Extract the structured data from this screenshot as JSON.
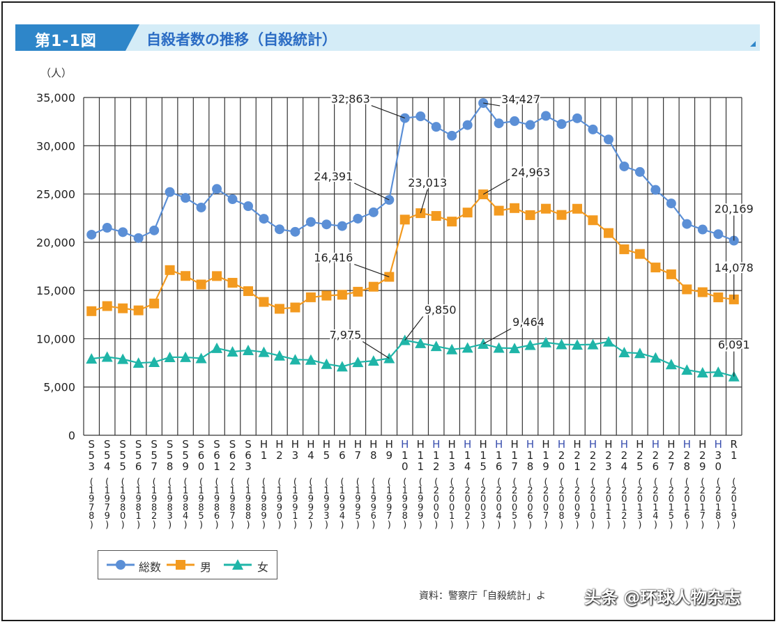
{
  "header": {
    "figure_label": "第1-1図",
    "title": "自殺者数の推移（自殺統計）"
  },
  "colors": {
    "header_dark": "#2e86c9",
    "header_light": "#d4ecf7",
    "total": "#5b8fd6",
    "male": "#f39a1f",
    "female": "#1fb5a8",
    "grid": "#333333"
  },
  "chart_data": {
    "type": "line",
    "ylabel": "（人）",
    "ylim": [
      0,
      35000
    ],
    "yticks": [
      "0",
      "5,000",
      "10,000",
      "15,000",
      "20,000",
      "25,000",
      "30,000",
      "35,000"
    ],
    "grid": true,
    "legend_position": "bottom-left",
    "categories": [
      {
        "era": "S53",
        "year": "1978"
      },
      {
        "era": "S54",
        "year": "1979"
      },
      {
        "era": "S55",
        "year": "1980"
      },
      {
        "era": "S56",
        "year": "1981"
      },
      {
        "era": "S57",
        "year": "1982"
      },
      {
        "era": "S58",
        "year": "1983"
      },
      {
        "era": "S59",
        "year": "1984"
      },
      {
        "era": "S60",
        "year": "1985"
      },
      {
        "era": "S61",
        "year": "1986"
      },
      {
        "era": "S62",
        "year": "1987"
      },
      {
        "era": "S63",
        "year": "1988"
      },
      {
        "era": "H1",
        "year": "1989"
      },
      {
        "era": "H2",
        "year": "1990"
      },
      {
        "era": "H3",
        "year": "1991"
      },
      {
        "era": "H4",
        "year": "1992"
      },
      {
        "era": "H5",
        "year": "1993"
      },
      {
        "era": "H6",
        "year": "1994"
      },
      {
        "era": "H7",
        "year": "1995"
      },
      {
        "era": "H8",
        "year": "1996"
      },
      {
        "era": "H9",
        "year": "1997"
      },
      {
        "era": "H10",
        "year": "1998"
      },
      {
        "era": "H11",
        "year": "1999"
      },
      {
        "era": "H12",
        "year": "2000"
      },
      {
        "era": "H13",
        "year": "2001"
      },
      {
        "era": "H14",
        "year": "2002"
      },
      {
        "era": "H15",
        "year": "2003"
      },
      {
        "era": "H16",
        "year": "2004"
      },
      {
        "era": "H17",
        "year": "2005"
      },
      {
        "era": "H18",
        "year": "2006"
      },
      {
        "era": "H19",
        "year": "2007"
      },
      {
        "era": "H20",
        "year": "2008"
      },
      {
        "era": "H21",
        "year": "2009"
      },
      {
        "era": "H22",
        "year": "2010"
      },
      {
        "era": "H23",
        "year": "2011"
      },
      {
        "era": "H24",
        "year": "2012"
      },
      {
        "era": "H25",
        "year": "2013"
      },
      {
        "era": "H26",
        "year": "2014"
      },
      {
        "era": "H27",
        "year": "2015"
      },
      {
        "era": "H28",
        "year": "2016"
      },
      {
        "era": "H29",
        "year": "2017"
      },
      {
        "era": "H30",
        "year": "2018"
      },
      {
        "era": "R1",
        "year": "2019"
      }
    ],
    "series": [
      {
        "name": "総数",
        "marker": "circle",
        "color": "#5b8fd6",
        "values": [
          20788,
          21503,
          21048,
          20434,
          21228,
          25202,
          24596,
          23599,
          25524,
          24460,
          23742,
          22436,
          21346,
          21084,
          22104,
          21851,
          21679,
          22445,
          23104,
          24391,
          32863,
          33048,
          31957,
          31042,
          32143,
          34427,
          32325,
          32552,
          32155,
          33093,
          32249,
          32845,
          31690,
          30651,
          27858,
          27283,
          25427,
          24025,
          21897,
          21321,
          20840,
          20169
        ]
      },
      {
        "name": "男",
        "marker": "square",
        "color": "#f39a1f",
        "values": [
          12859,
          13386,
          13155,
          12942,
          13654,
          17116,
          16508,
          15624,
          16497,
          15802,
          14934,
          13818,
          13102,
          13242,
          14296,
          14468,
          14560,
          14874,
          15393,
          16416,
          22349,
          23013,
          22727,
          22144,
          23080,
          24963,
          23272,
          23540,
          22813,
          23478,
          22831,
          23472,
          22283,
          20955,
          19273,
          18787,
          17386,
          16681,
          15121,
          14826,
          14290,
          14078
        ]
      },
      {
        "name": "女",
        "marker": "triangle",
        "color": "#1fb5a8",
        "values": [
          7929,
          8117,
          7893,
          7492,
          7574,
          8086,
          8088,
          7975,
          9027,
          8658,
          8808,
          8618,
          8244,
          7842,
          7808,
          7383,
          7119,
          7571,
          7711,
          7975,
          9850,
          9535,
          9230,
          8898,
          9063,
          9464,
          9053,
          9012,
          9342,
          9615,
          9418,
          9373,
          9407,
          9696,
          8585,
          8496,
          8041,
          7344,
          6776,
          6495,
          6550,
          6091
        ]
      }
    ],
    "annotations": [
      {
        "series": 0,
        "index": 19,
        "text": "24,391",
        "dx": -50,
        "dy": -28
      },
      {
        "series": 0,
        "index": 20,
        "text": "32,863",
        "dx": -48,
        "dy": -22
      },
      {
        "series": 0,
        "index": 25,
        "text": "34,427",
        "dx": 24,
        "dy": 0
      },
      {
        "series": 0,
        "index": 41,
        "text": "20,169",
        "dx": 0,
        "dy": -40
      },
      {
        "series": 1,
        "index": 19,
        "text": "16,416",
        "dx": -50,
        "dy": -22
      },
      {
        "series": 1,
        "index": 21,
        "text": "23,013",
        "dx": 10,
        "dy": -38
      },
      {
        "series": 1,
        "index": 25,
        "text": "24,963",
        "dx": 38,
        "dy": -26
      },
      {
        "series": 1,
        "index": 41,
        "text": "14,078",
        "dx": 0,
        "dy": -40
      },
      {
        "series": 2,
        "index": 19,
        "text": "7,975",
        "dx": -38,
        "dy": -28
      },
      {
        "series": 2,
        "index": 20,
        "text": "9,850",
        "dx": 26,
        "dy": -38
      },
      {
        "series": 2,
        "index": 25,
        "text": "9,464",
        "dx": 40,
        "dy": -26
      },
      {
        "series": 2,
        "index": 41,
        "text": "6,091",
        "dx": 0,
        "dy": -40
      }
    ]
  },
  "legend": {
    "items": [
      {
        "label": "総数",
        "marker": "circle",
        "color": "#5b8fd6"
      },
      {
        "label": "男",
        "marker": "square",
        "color": "#f39a1f"
      },
      {
        "label": "女",
        "marker": "triangle",
        "color": "#1fb5a8"
      }
    ]
  },
  "source": "資料：警察庁「自殺統計」よ",
  "watermark": "头条 @环球人物杂志"
}
